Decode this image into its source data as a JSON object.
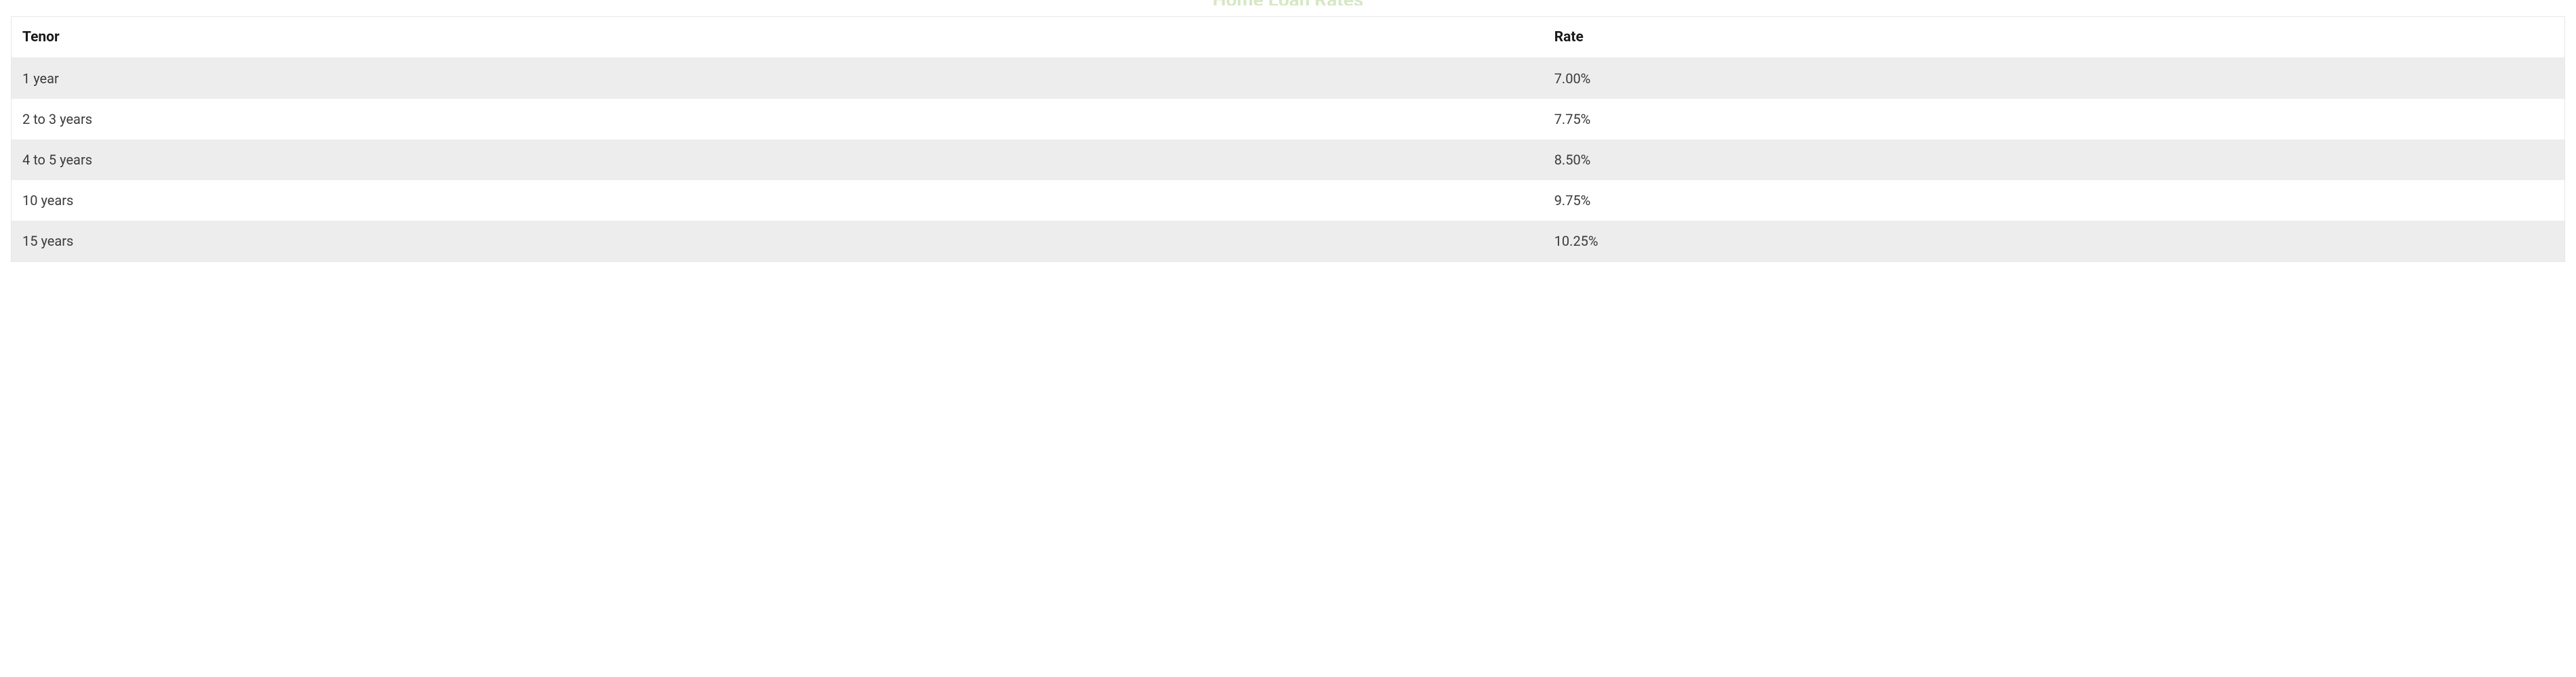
{
  "title": "Home Loan Rates",
  "table": {
    "columns": [
      "Tenor",
      "Rate"
    ],
    "rows": [
      [
        "1 year",
        "7.00%"
      ],
      [
        "2 to 3 years",
        "7.75%"
      ],
      [
        "4 to 5 years",
        "8.50%"
      ],
      [
        "10 years",
        "9.75%"
      ],
      [
        "15 years",
        "10.25%"
      ]
    ],
    "header_bg": "#ffffff",
    "row_alt_bg": "#ededed",
    "row_bg": "#ffffff",
    "border_color": "#e8e8e8",
    "header_font_weight": 700,
    "header_color": "#1a1a1a",
    "cell_color": "#3a3a3a",
    "title_color": "#7cb342"
  }
}
